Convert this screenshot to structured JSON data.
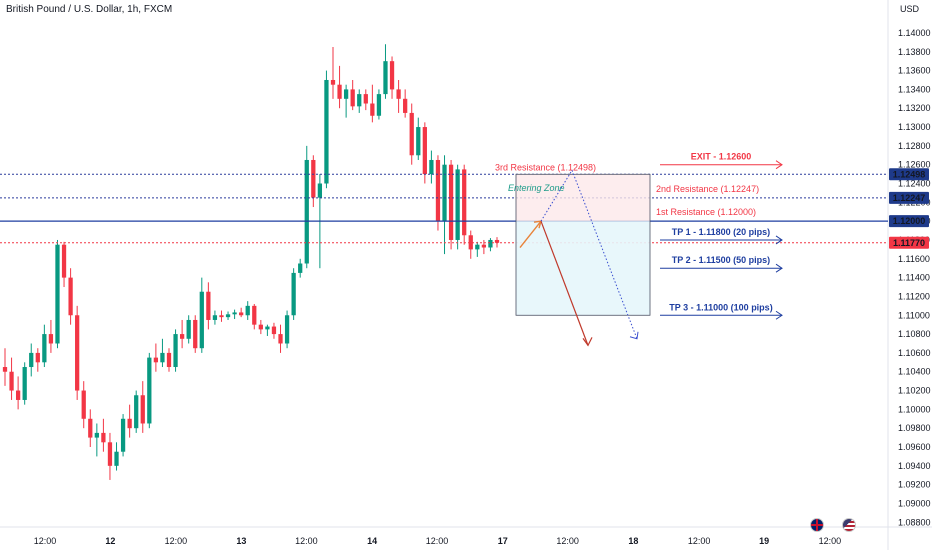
{
  "header": {
    "title": "British Pound / U.S. Dollar, 1h, FXCM",
    "currency": "USD"
  },
  "chart_data": {
    "type": "candlestick",
    "title": "British Pound / U.S. Dollar, 1h, FXCM",
    "ylim": [
      1.0875,
      1.1435
    ],
    "y_ticks": [
      "1.14000",
      "1.13800",
      "1.13600",
      "1.13400",
      "1.13200",
      "1.13000",
      "1.12800",
      "1.12600",
      "1.12400",
      "1.12200",
      "1.12000",
      "1.11800",
      "1.11600",
      "1.11400",
      "1.11200",
      "1.11000",
      "1.10800",
      "1.10600",
      "1.10400",
      "1.10200",
      "1.10000",
      "1.09800",
      "1.09600",
      "1.09400",
      "1.09200",
      "1.09000",
      "1.08800"
    ],
    "x_ticks": [
      {
        "label": "12:00",
        "pos": 0.0
      },
      {
        "label": "12",
        "pos": 0.0776
      },
      {
        "label": "12:00",
        "pos": 0.1552
      },
      {
        "label": "13",
        "pos": 0.233
      },
      {
        "label": "12:00",
        "pos": 0.31
      },
      {
        "label": "14",
        "pos": 0.388
      },
      {
        "label": "12:00",
        "pos": 0.465
      },
      {
        "label": "17",
        "pos": 0.543
      },
      {
        "label": "12:00",
        "pos": 0.62
      },
      {
        "label": "18",
        "pos": 0.698
      },
      {
        "label": "12:00",
        "pos": 0.776
      },
      {
        "label": "19",
        "pos": 0.853
      },
      {
        "label": "12:00",
        "pos": 0.931
      }
    ],
    "candles": [
      [
        1.1045,
        1.1065,
        1.1025,
        1.104
      ],
      [
        1.104,
        1.1055,
        1.101,
        1.102
      ],
      [
        1.102,
        1.1035,
        1.1,
        1.101
      ],
      [
        1.101,
        1.105,
        1.1005,
        1.1045
      ],
      [
        1.1045,
        1.107,
        1.1035,
        1.106
      ],
      [
        1.106,
        1.1065,
        1.104,
        1.105
      ],
      [
        1.105,
        1.109,
        1.1045,
        1.108
      ],
      [
        1.108,
        1.1095,
        1.106,
        1.107
      ],
      [
        1.107,
        1.118,
        1.1065,
        1.1175
      ],
      [
        1.1175,
        1.1178,
        1.113,
        1.114
      ],
      [
        1.114,
        1.115,
        1.109,
        1.11
      ],
      [
        1.11,
        1.111,
        1.101,
        1.102
      ],
      [
        1.102,
        1.103,
        1.098,
        1.099
      ],
      [
        1.099,
        1.1,
        1.096,
        1.097
      ],
      [
        1.097,
        1.0985,
        1.095,
        1.0975
      ],
      [
        1.0975,
        1.099,
        1.0955,
        1.0965
      ],
      [
        1.0965,
        1.0975,
        1.0925,
        1.094
      ],
      [
        1.094,
        1.0965,
        1.0935,
        1.0955
      ],
      [
        1.0955,
        1.0995,
        1.095,
        1.099
      ],
      [
        1.099,
        1.1005,
        1.097,
        1.098
      ],
      [
        1.098,
        1.102,
        1.0975,
        1.1015
      ],
      [
        1.1015,
        1.103,
        1.0975,
        1.0985
      ],
      [
        1.0985,
        1.106,
        1.098,
        1.1055
      ],
      [
        1.1055,
        1.107,
        1.104,
        1.105
      ],
      [
        1.105,
        1.1075,
        1.1045,
        1.106
      ],
      [
        1.106,
        1.1065,
        1.104,
        1.1045
      ],
      [
        1.1045,
        1.1085,
        1.104,
        1.108
      ],
      [
        1.108,
        1.1095,
        1.1065,
        1.1075
      ],
      [
        1.1075,
        1.11,
        1.107,
        1.1095
      ],
      [
        1.1095,
        1.11,
        1.106,
        1.1065
      ],
      [
        1.1065,
        1.114,
        1.106,
        1.1125
      ],
      [
        1.1125,
        1.1135,
        1.1085,
        1.1095
      ],
      [
        1.1095,
        1.1105,
        1.109,
        1.11
      ],
      [
        1.11,
        1.1105,
        1.1093,
        1.1098
      ],
      [
        1.1098,
        1.1104,
        1.1095,
        1.1101
      ],
      [
        1.1101,
        1.1106,
        1.1096,
        1.1103
      ],
      [
        1.1103,
        1.1108,
        1.1098,
        1.11
      ],
      [
        1.11,
        1.1115,
        1.1095,
        1.111
      ],
      [
        1.111,
        1.1112,
        1.1085,
        1.109
      ],
      [
        1.109,
        1.1095,
        1.108,
        1.1085
      ],
      [
        1.1085,
        1.109,
        1.1078,
        1.1088
      ],
      [
        1.1088,
        1.1092,
        1.1075,
        1.108
      ],
      [
        1.108,
        1.109,
        1.106,
        1.107
      ],
      [
        1.107,
        1.1105,
        1.1065,
        1.11
      ],
      [
        1.11,
        1.115,
        1.1095,
        1.1145
      ],
      [
        1.1145,
        1.116,
        1.114,
        1.1155
      ],
      [
        1.1155,
        1.128,
        1.115,
        1.1265
      ],
      [
        1.1265,
        1.127,
        1.1215,
        1.1225
      ],
      [
        1.1225,
        1.125,
        1.115,
        1.124
      ],
      [
        1.124,
        1.136,
        1.1235,
        1.135
      ],
      [
        1.135,
        1.1385,
        1.133,
        1.1345
      ],
      [
        1.1345,
        1.1365,
        1.132,
        1.133
      ],
      [
        1.133,
        1.1345,
        1.131,
        1.134
      ],
      [
        1.134,
        1.135,
        1.1318,
        1.1322
      ],
      [
        1.1322,
        1.134,
        1.1315,
        1.1335
      ],
      [
        1.1335,
        1.134,
        1.1318,
        1.1325
      ],
      [
        1.1325,
        1.1345,
        1.1305,
        1.1312
      ],
      [
        1.1312,
        1.134,
        1.1308,
        1.1335
      ],
      [
        1.1335,
        1.1388,
        1.133,
        1.137
      ],
      [
        1.137,
        1.1375,
        1.133,
        1.134
      ],
      [
        1.134,
        1.135,
        1.1315,
        1.133
      ],
      [
        1.133,
        1.134,
        1.131,
        1.1315
      ],
      [
        1.1315,
        1.1325,
        1.126,
        1.127
      ],
      [
        1.127,
        1.131,
        1.1265,
        1.13
      ],
      [
        1.13,
        1.1305,
        1.124,
        1.125
      ],
      [
        1.125,
        1.1275,
        1.124,
        1.1265
      ],
      [
        1.1265,
        1.127,
        1.119,
        1.12
      ],
      [
        1.12,
        1.127,
        1.1165,
        1.126
      ],
      [
        1.126,
        1.1265,
        1.117,
        1.118
      ],
      [
        1.118,
        1.126,
        1.117,
        1.1255
      ],
      [
        1.1255,
        1.126,
        1.1175,
        1.1185
      ],
      [
        1.1185,
        1.119,
        1.116,
        1.117
      ],
      [
        1.117,
        1.1178,
        1.1162,
        1.1175
      ],
      [
        1.1175,
        1.118,
        1.1165,
        1.1172
      ],
      [
        1.1172,
        1.1182,
        1.1168,
        1.118
      ],
      [
        1.118,
        1.1183,
        1.1172,
        1.1177
      ]
    ],
    "levels": [
      {
        "name": "3rd Resistance (1.12498)",
        "value": 1.12498,
        "style": "dotted",
        "color": "#2a3a9c"
      },
      {
        "name": "2nd Resistance (1.12247)",
        "value": 1.12247,
        "style": "dotted",
        "color": "#2a3a9c"
      },
      {
        "name": "1st Resistance (1.12000)",
        "value": 1.12,
        "style": "solid",
        "color": "#1e3ea0"
      },
      {
        "name": "current",
        "value": 1.1177,
        "style": "dotted",
        "color": "#f23645"
      }
    ],
    "price_tags": [
      {
        "text": "1.12498",
        "value": 1.12498,
        "color": "#1e3a8a"
      },
      {
        "text": "1.12247",
        "value": 1.12247,
        "color": "#1e3a8a"
      },
      {
        "text": "1.12000",
        "value": 1.12,
        "color": "#1e3a8a"
      },
      {
        "text": "1.11770",
        "value": 1.1177,
        "color": "#f23645"
      }
    ],
    "zone": {
      "label": "Entering Zone",
      "from": 1.11,
      "to": 1.12498,
      "split": 1.12
    },
    "targets": [
      {
        "text": "EXIT - 1.12600",
        "value": 1.126,
        "color": "#f23645"
      },
      {
        "text": "TP 1 - 1.11800 (20 pips)",
        "value": 1.118,
        "color": "#1e3ea0"
      },
      {
        "text": "TP 2 - 1.11500 (50 pips)",
        "value": 1.115,
        "color": "#1e3ea0"
      },
      {
        "text": "TP 3 - 1.11000 (100 pips)",
        "value": 1.11,
        "color": "#1e3ea0"
      }
    ],
    "annotations": [
      {
        "text": "3rd Resistance (1.12498)",
        "color": "#f23645"
      },
      {
        "text": "2nd Resistance (1.12247)",
        "color": "#f23645"
      },
      {
        "text": "1st Resistance (1.12000)",
        "color": "#f23645"
      }
    ],
    "colors": {
      "up": "#089981",
      "down": "#f23645",
      "accent": "#1e3ea0"
    }
  },
  "flags": [
    {
      "name": "uk-flag-icon"
    },
    {
      "name": "us-flag-icon"
    }
  ]
}
